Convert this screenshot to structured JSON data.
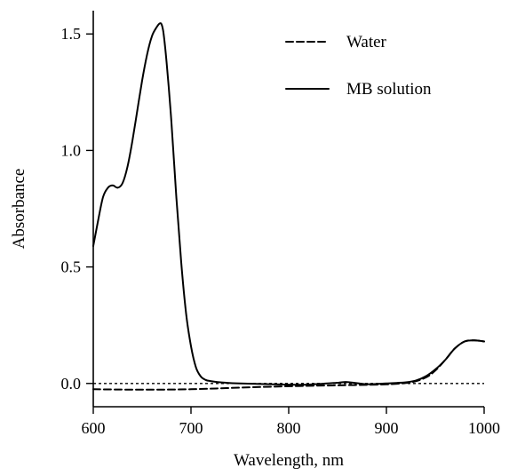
{
  "chart_data": {
    "type": "line",
    "xlabel": "Wavelength, nm",
    "ylabel": "Absorbance",
    "xlim": [
      600,
      1000
    ],
    "ylim": [
      -0.1,
      1.6
    ],
    "x_ticks": [
      600,
      700,
      800,
      900,
      1000
    ],
    "y_ticks": [
      0.0,
      0.5,
      1.0,
      1.5
    ],
    "x_tick_labels": [
      "600",
      "700",
      "800",
      "900",
      "1000"
    ],
    "y_tick_labels": [
      "0.0",
      "0.5",
      "1.0",
      "1.5"
    ],
    "reference_line": {
      "y": 0.0,
      "style": "dotted"
    },
    "legend_position": "top-right",
    "series": [
      {
        "name": "Water",
        "style": "dashed",
        "x": [
          600,
          650,
          700,
          750,
          800,
          850,
          900,
          925,
          940,
          950,
          960,
          970,
          980,
          990,
          1000
        ],
        "y": [
          -0.025,
          -0.027,
          -0.025,
          -0.018,
          -0.012,
          -0.008,
          -0.004,
          0.005,
          0.025,
          0.055,
          0.1,
          0.15,
          0.18,
          0.185,
          0.18
        ]
      },
      {
        "name": "MB solution",
        "style": "solid",
        "x": [
          600,
          605,
          610,
          615,
          620,
          625,
          630,
          635,
          640,
          645,
          650,
          655,
          660,
          665,
          668,
          670,
          672,
          675,
          680,
          685,
          690,
          695,
          700,
          705,
          710,
          715,
          720,
          730,
          750,
          800,
          820,
          850,
          860,
          880,
          900,
          920,
          930,
          940,
          950,
          960,
          970,
          980,
          990,
          1000
        ],
        "y": [
          0.59,
          0.7,
          0.8,
          0.84,
          0.85,
          0.84,
          0.86,
          0.93,
          1.04,
          1.17,
          1.3,
          1.41,
          1.49,
          1.53,
          1.545,
          1.54,
          1.5,
          1.38,
          1.12,
          0.8,
          0.52,
          0.3,
          0.16,
          0.07,
          0.03,
          0.015,
          0.01,
          0.005,
          0.0,
          -0.005,
          -0.005,
          0.003,
          0.006,
          -0.003,
          0.0,
          0.005,
          0.012,
          0.03,
          0.06,
          0.1,
          0.15,
          0.18,
          0.185,
          0.18
        ]
      }
    ]
  }
}
